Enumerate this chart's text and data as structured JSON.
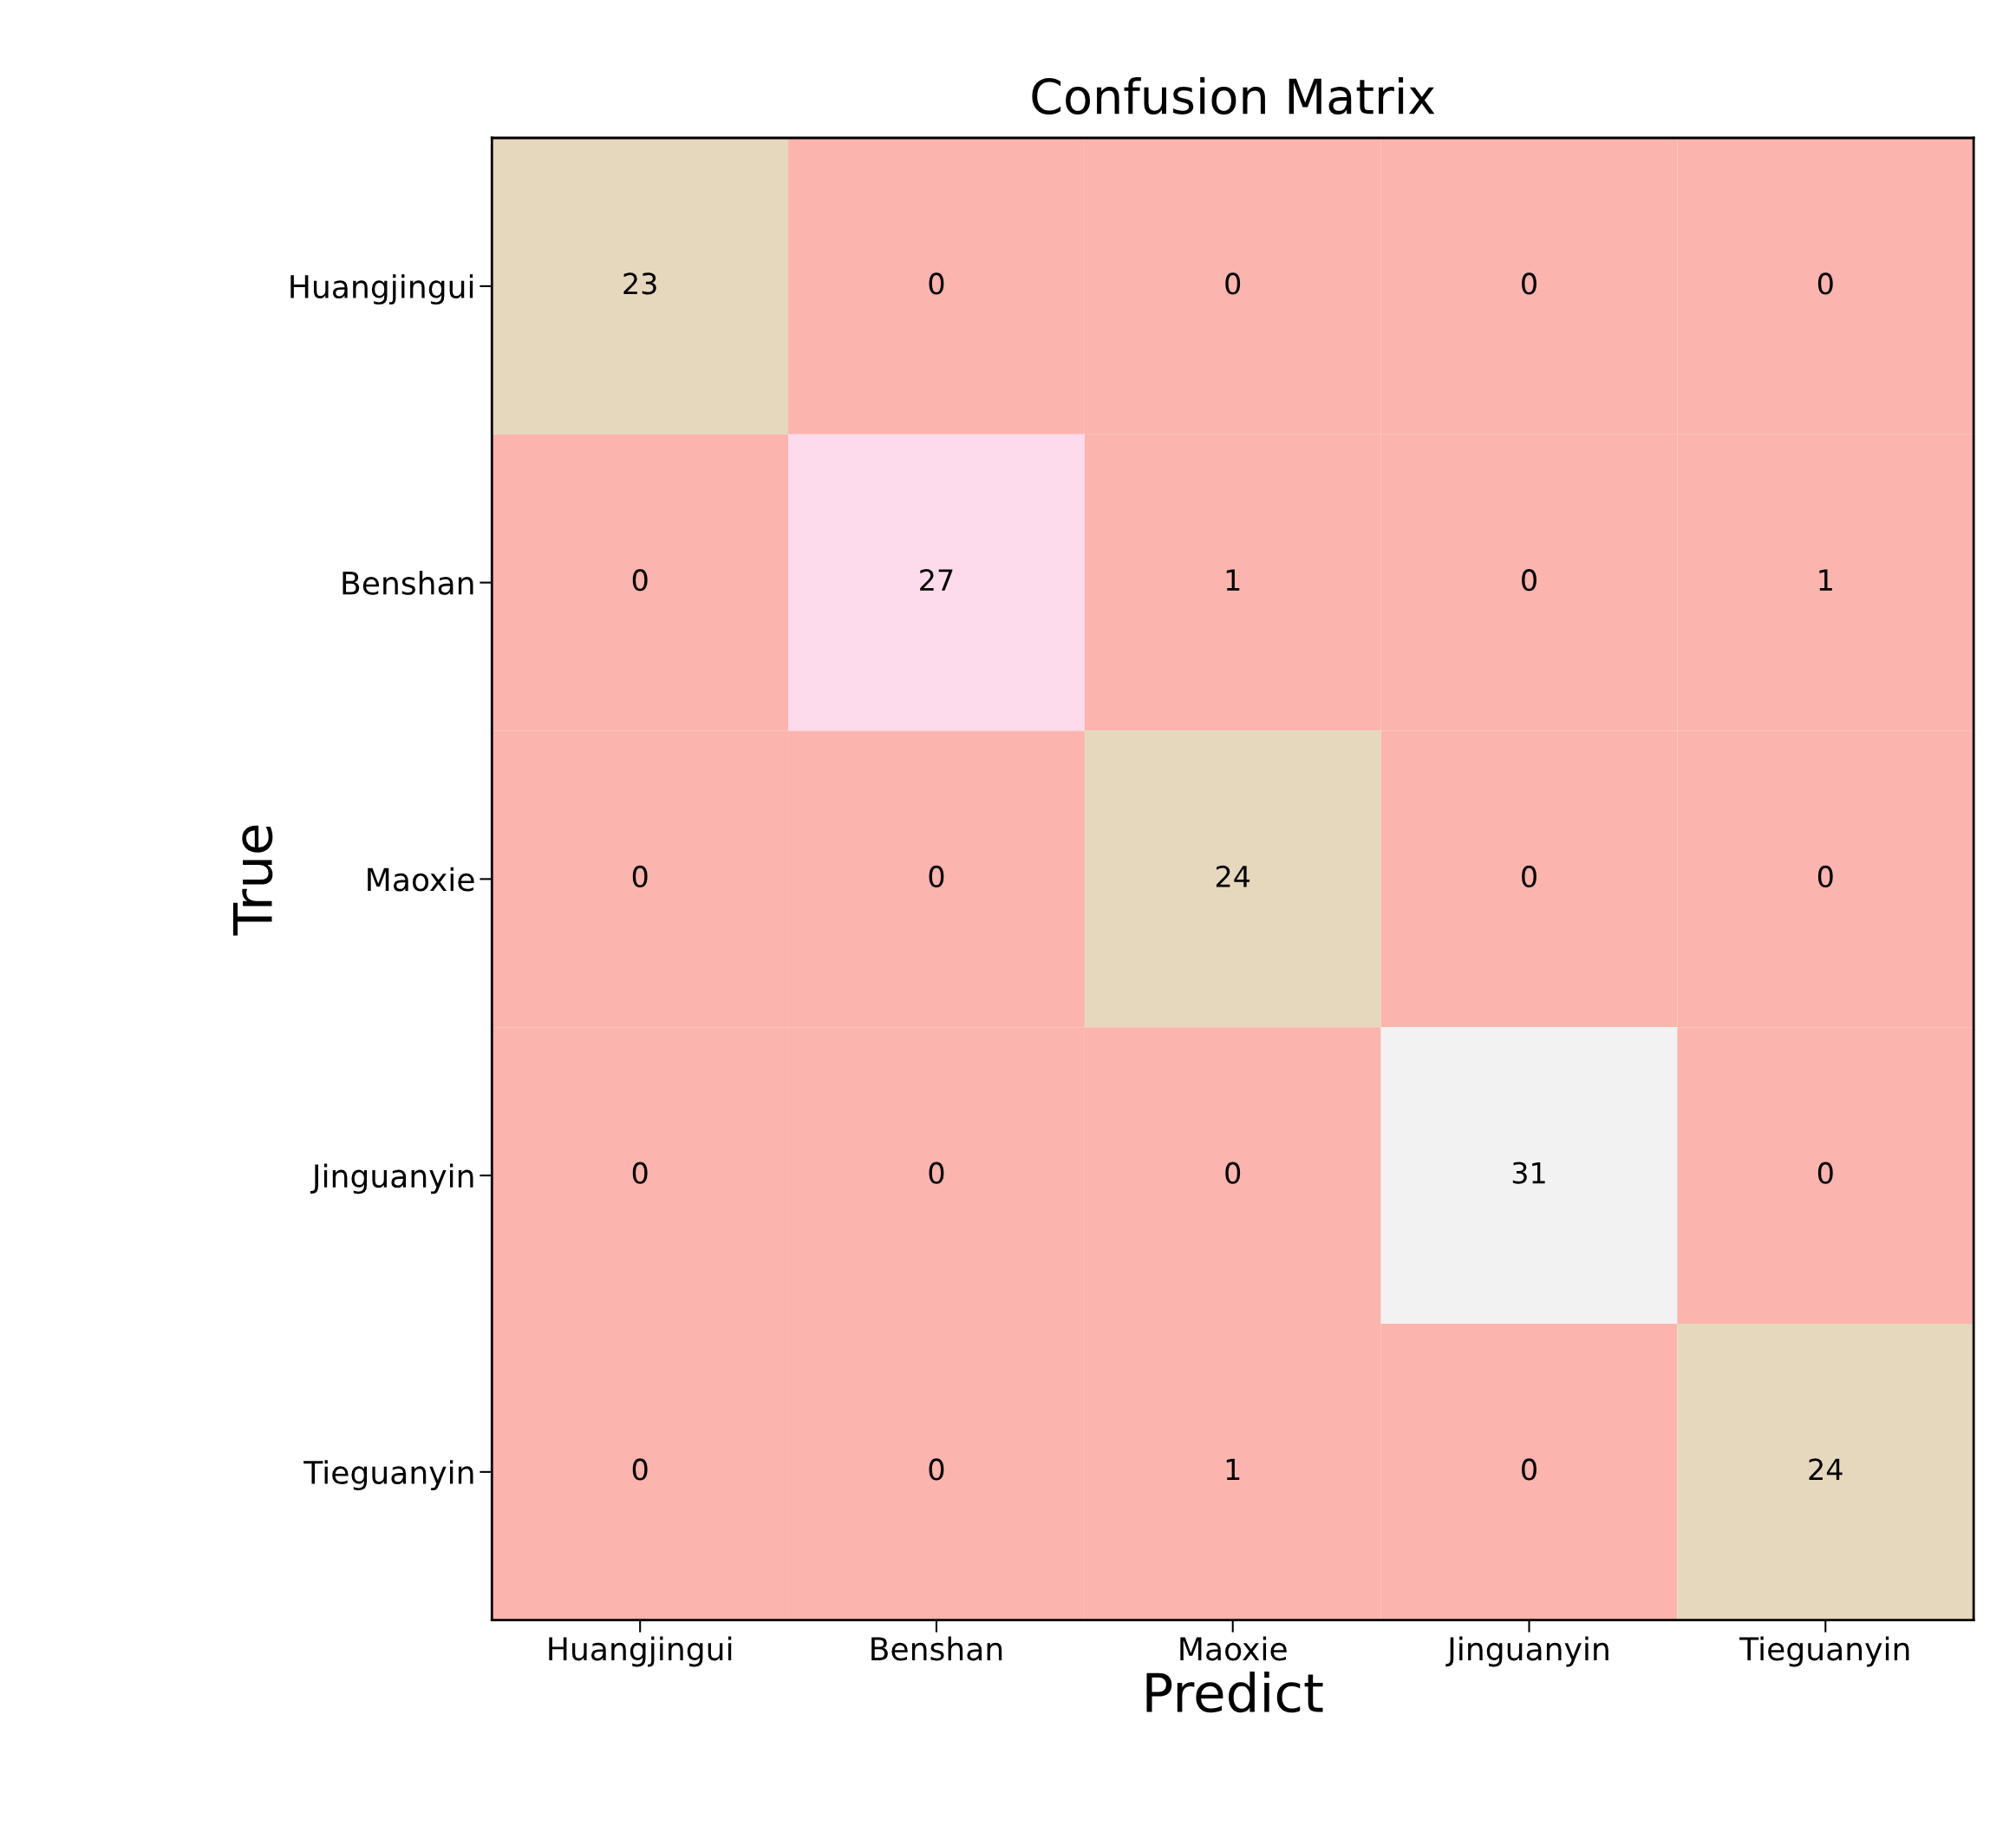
{
  "chart_data": {
    "type": "heatmap",
    "title": "Confusion Matrix",
    "xlabel": "Predict",
    "ylabel": "True",
    "categories": [
      "Huangjingui",
      "Benshan",
      "Maoxie",
      "Jinguanyin",
      "Tieguanyin"
    ],
    "y_categories": [
      "Huangjingui",
      "Benshan",
      "Maoxie",
      "Jinguanyin",
      "Tieguanyin"
    ],
    "cells": [
      [
        23,
        0,
        0,
        0,
        0
      ],
      [
        0,
        27,
        1,
        0,
        1
      ],
      [
        0,
        0,
        24,
        0,
        0
      ],
      [
        0,
        0,
        0,
        31,
        0
      ],
      [
        0,
        0,
        1,
        0,
        24
      ]
    ],
    "data_labels": true
  }
}
